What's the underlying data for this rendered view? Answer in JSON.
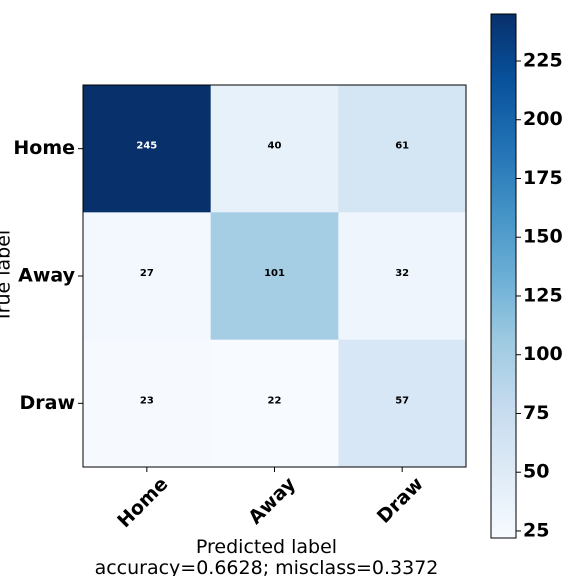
{
  "chart_data": {
    "type": "heatmap",
    "x_categories": [
      "Home",
      "Away",
      "Draw"
    ],
    "y_categories": [
      "Home",
      "Away",
      "Draw"
    ],
    "matrix": [
      [
        245,
        40,
        61
      ],
      [
        27,
        101,
        32
      ],
      [
        23,
        22,
        57
      ]
    ],
    "xlabel": "Predicted label",
    "xlabel_line2": "accuracy=0.6628; misclass=0.3372",
    "ylabel": "True label",
    "colormap": "Blues",
    "colorbar": {
      "range": [
        22,
        245
      ],
      "ticks": [
        25,
        50,
        75,
        100,
        125,
        150,
        175,
        200,
        225
      ]
    },
    "grid": false
  }
}
